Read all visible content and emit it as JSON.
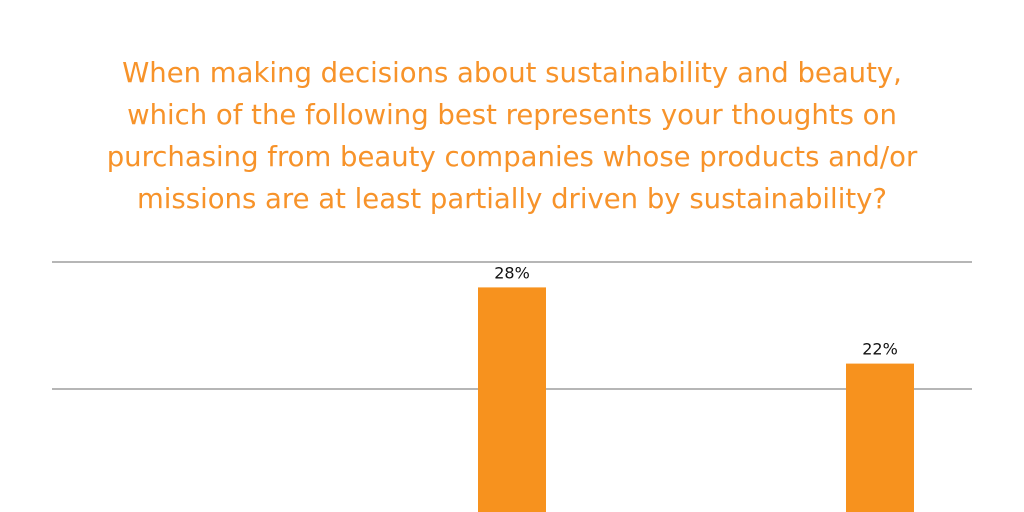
{
  "chart_data": {
    "type": "bar",
    "title": "When making decisions about sustainability and beauty, which of the following best represents your thoughts on purchasing from beauty companies whose products and/or missions are at least partially driven by sustainability?",
    "title_lines": [
      "When making decisions about sustainability and beauty,",
      "which of the following best represents your thoughts on",
      "purchasing from beauty companies whose products and/or",
      "missions are at least partially driven by sustainability?"
    ],
    "values": [
      28,
      22
    ],
    "data_labels": [
      "28%",
      "22%"
    ],
    "unit": "%",
    "grid": true,
    "gridlines": [
      30,
      20
    ],
    "colors": {
      "bar": "#F7921E",
      "title": "#F7932A",
      "grid": "#9e9e9e"
    }
  }
}
